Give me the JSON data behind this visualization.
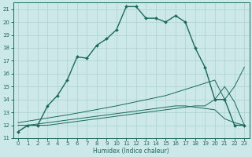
{
  "xlabel": "Humidex (Indice chaleur)",
  "bg_color": "#cce8e8",
  "grid_color": "#aad0d0",
  "line_color": "#1a6b5a",
  "xlim": [
    -0.5,
    23.5
  ],
  "ylim": [
    11,
    21.5
  ],
  "yticks": [
    11,
    12,
    13,
    14,
    15,
    16,
    17,
    18,
    19,
    20,
    21
  ],
  "xticks": [
    0,
    1,
    2,
    3,
    4,
    5,
    6,
    7,
    8,
    9,
    10,
    11,
    12,
    13,
    14,
    15,
    16,
    17,
    18,
    19,
    20,
    21,
    22,
    23
  ],
  "line1_x": [
    0,
    1,
    2,
    3,
    4,
    5,
    6,
    7,
    8,
    9,
    10,
    11,
    12,
    13,
    14,
    15,
    16,
    17,
    18,
    19,
    20,
    21,
    22,
    23
  ],
  "line1_y": [
    11.5,
    12.0,
    12.0,
    13.5,
    14.3,
    15.5,
    17.3,
    17.2,
    18.2,
    18.7,
    19.4,
    21.2,
    21.2,
    20.3,
    20.3,
    20.0,
    20.5,
    20.0,
    18.0,
    16.5,
    14.0,
    14.0,
    12.0,
    12.0
  ],
  "line2_x": [
    0,
    5,
    10,
    15,
    20,
    21,
    22,
    23
  ],
  "line2_y": [
    12.2,
    12.8,
    13.5,
    14.3,
    15.5,
    14.0,
    15.0,
    16.5
  ],
  "line3_x": [
    0,
    1,
    2,
    3,
    4,
    5,
    6,
    7,
    8,
    9,
    10,
    11,
    12,
    13,
    14,
    15,
    16,
    17,
    18,
    19,
    20,
    21,
    22,
    23
  ],
  "line3_y": [
    12.0,
    12.0,
    12.1,
    12.2,
    12.3,
    12.4,
    12.5,
    12.6,
    12.7,
    12.8,
    12.9,
    13.0,
    13.1,
    13.2,
    13.3,
    13.4,
    13.5,
    13.5,
    13.4,
    13.3,
    13.2,
    12.5,
    12.2,
    12.0
  ],
  "line4_x": [
    0,
    1,
    2,
    3,
    4,
    5,
    6,
    7,
    8,
    9,
    10,
    11,
    12,
    13,
    14,
    15,
    16,
    17,
    18,
    19,
    20,
    21,
    22,
    23
  ],
  "line4_y": [
    11.5,
    12.0,
    12.0,
    12.0,
    12.1,
    12.2,
    12.3,
    12.4,
    12.5,
    12.6,
    12.7,
    12.8,
    12.9,
    13.0,
    13.1,
    13.2,
    13.3,
    13.4,
    13.5,
    13.5,
    14.0,
    15.0,
    13.8,
    12.0
  ]
}
